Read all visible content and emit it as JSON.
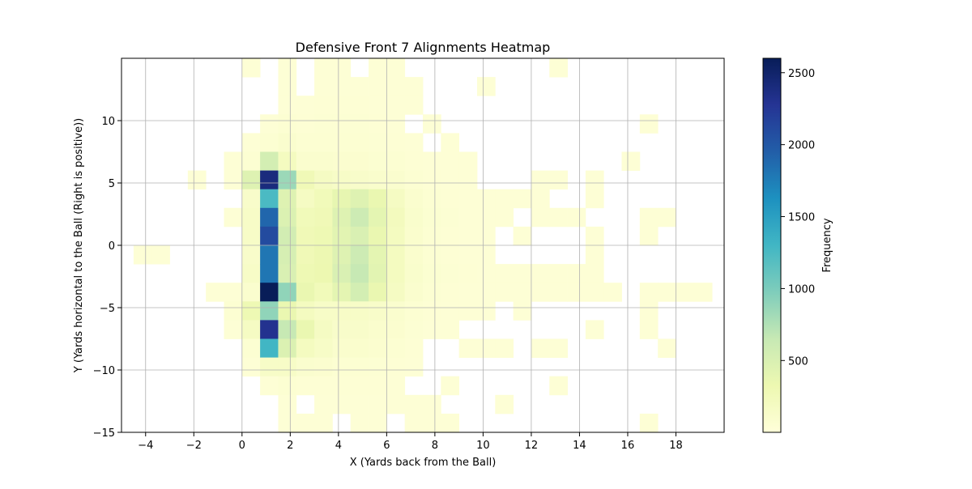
{
  "chart_data": {
    "type": "heatmap",
    "title": "Defensive Front 7 Alignments Heatmap",
    "xlabel": "X (Yards back from the Ball)",
    "ylabel": "Y (Yards horizontal to the Ball (Right is positive))",
    "colorbar_label": "Frequency",
    "colormap": "YlGnBu",
    "xlim": [
      -5,
      20
    ],
    "ylim": [
      -15,
      15
    ],
    "x_ticks": [
      "−4",
      "−2",
      "0",
      "2",
      "4",
      "6",
      "8",
      "10",
      "12",
      "14",
      "16",
      "18"
    ],
    "y_ticks": [
      "−15",
      "−10",
      "−5",
      "0",
      "5",
      "10"
    ],
    "colorbar_ticks": [
      "500",
      "1000",
      "1500",
      "2000",
      "2500"
    ],
    "colorbar_range": [
      1,
      2600
    ],
    "grid": true,
    "bin_width_x": 0.75,
    "bin_height_y": 1.5,
    "columns": [
      {
        "x": -4.125,
        "cells": [
          [
            -0.75,
            30
          ]
        ]
      },
      {
        "x": -3.375,
        "cells": [
          [
            -0.75,
            30
          ]
        ]
      },
      {
        "x": -1.875,
        "cells": [
          [
            5.25,
            30
          ]
        ]
      },
      {
        "x": -1.125,
        "cells": [
          [
            -3.75,
            30
          ]
        ]
      },
      {
        "x": -0.375,
        "cells": [
          [
            6.75,
            30
          ],
          [
            5.25,
            30
          ],
          [
            2.25,
            30
          ],
          [
            -3.75,
            30
          ],
          [
            -5.25,
            60
          ],
          [
            -6.75,
            30
          ]
        ]
      },
      {
        "x": 0.375,
        "cells": [
          [
            14.25,
            30
          ],
          [
            8.25,
            30
          ],
          [
            6.75,
            60
          ],
          [
            5.25,
            450
          ],
          [
            3.75,
            120
          ],
          [
            2.25,
            150
          ],
          [
            0.75,
            150
          ],
          [
            -0.75,
            120
          ],
          [
            -2.25,
            150
          ],
          [
            -3.75,
            90
          ],
          [
            -5.25,
            300
          ],
          [
            -6.75,
            180
          ],
          [
            -8.25,
            60
          ],
          [
            -9.75,
            30
          ]
        ]
      },
      {
        "x": 1.125,
        "cells": [
          [
            9.75,
            30
          ],
          [
            8.25,
            60
          ],
          [
            6.75,
            550
          ],
          [
            5.25,
            2400
          ],
          [
            3.75,
            1250
          ],
          [
            2.25,
            1900
          ],
          [
            0.75,
            2100
          ],
          [
            -0.75,
            1800
          ],
          [
            -2.25,
            1800
          ],
          [
            -3.75,
            2600
          ],
          [
            -5.25,
            900
          ],
          [
            -6.75,
            2300
          ],
          [
            -8.25,
            1300
          ],
          [
            -9.75,
            150
          ],
          [
            -11.25,
            30
          ]
        ]
      },
      {
        "x": 1.875,
        "cells": [
          [
            14.25,
            30
          ],
          [
            12.75,
            30
          ],
          [
            11.25,
            30
          ],
          [
            9.75,
            60
          ],
          [
            8.25,
            90
          ],
          [
            6.75,
            200
          ],
          [
            5.25,
            850
          ],
          [
            3.75,
            450
          ],
          [
            2.25,
            480
          ],
          [
            0.75,
            560
          ],
          [
            -0.75,
            520
          ],
          [
            -2.25,
            500
          ],
          [
            -3.75,
            900
          ],
          [
            -5.25,
            350
          ],
          [
            -6.75,
            650
          ],
          [
            -8.25,
            480
          ],
          [
            -9.75,
            150
          ],
          [
            -11.25,
            60
          ],
          [
            -12.75,
            30
          ],
          [
            -14.25,
            30
          ]
        ]
      },
      {
        "x": 2.625,
        "cells": [
          [
            11.25,
            30
          ],
          [
            9.75,
            40
          ],
          [
            8.25,
            60
          ],
          [
            6.75,
            90
          ],
          [
            5.25,
            280
          ],
          [
            3.75,
            180
          ],
          [
            2.25,
            250
          ],
          [
            0.75,
            280
          ],
          [
            -0.75,
            280
          ],
          [
            -2.25,
            300
          ],
          [
            -3.75,
            350
          ],
          [
            -5.25,
            200
          ],
          [
            -6.75,
            350
          ],
          [
            -8.25,
            200
          ],
          [
            -9.75,
            90
          ],
          [
            -11.25,
            40
          ],
          [
            -14.25,
            30
          ]
        ]
      },
      {
        "x": 3.375,
        "cells": [
          [
            14.25,
            30
          ],
          [
            12.75,
            30
          ],
          [
            11.25,
            40
          ],
          [
            9.75,
            50
          ],
          [
            8.25,
            60
          ],
          [
            6.75,
            90
          ],
          [
            5.25,
            180
          ],
          [
            3.75,
            250
          ],
          [
            2.25,
            280
          ],
          [
            0.75,
            300
          ],
          [
            -0.75,
            320
          ],
          [
            -2.25,
            330
          ],
          [
            -3.75,
            250
          ],
          [
            -5.25,
            150
          ],
          [
            -6.75,
            180
          ],
          [
            -8.25,
            150
          ],
          [
            -9.75,
            80
          ],
          [
            -11.25,
            40
          ],
          [
            -12.75,
            30
          ],
          [
            -14.25,
            30
          ]
        ]
      },
      {
        "x": 4.125,
        "cells": [
          [
            14.25,
            30
          ],
          [
            12.75,
            30
          ],
          [
            11.25,
            40
          ],
          [
            9.75,
            50
          ],
          [
            8.25,
            60
          ],
          [
            6.75,
            80
          ],
          [
            5.25,
            150
          ],
          [
            3.75,
            380
          ],
          [
            2.25,
            450
          ],
          [
            0.75,
            420
          ],
          [
            -0.75,
            450
          ],
          [
            -2.25,
            500
          ],
          [
            -3.75,
            400
          ],
          [
            -5.25,
            150
          ],
          [
            -6.75,
            120
          ],
          [
            -8.25,
            100
          ],
          [
            -9.75,
            60
          ],
          [
            -11.25,
            40
          ],
          [
            -12.75,
            30
          ]
        ]
      },
      {
        "x": 4.875,
        "cells": [
          [
            12.75,
            30
          ],
          [
            11.25,
            40
          ],
          [
            9.75,
            50
          ],
          [
            8.25,
            60
          ],
          [
            6.75,
            80
          ],
          [
            5.25,
            120
          ],
          [
            3.75,
            450
          ],
          [
            2.25,
            600
          ],
          [
            0.75,
            500
          ],
          [
            -0.75,
            600
          ],
          [
            -2.25,
            650
          ],
          [
            -3.75,
            550
          ],
          [
            -5.25,
            150
          ],
          [
            -6.75,
            120
          ],
          [
            -8.25,
            100
          ],
          [
            -9.75,
            60
          ],
          [
            -11.25,
            40
          ],
          [
            -12.75,
            30
          ],
          [
            -14.25,
            30
          ]
        ]
      },
      {
        "x": 5.625,
        "cells": [
          [
            14.25,
            30
          ],
          [
            12.75,
            30
          ],
          [
            11.25,
            30
          ],
          [
            9.75,
            40
          ],
          [
            8.25,
            50
          ],
          [
            6.75,
            70
          ],
          [
            5.25,
            110
          ],
          [
            3.75,
            350
          ],
          [
            2.25,
            400
          ],
          [
            0.75,
            350
          ],
          [
            -0.75,
            400
          ],
          [
            -2.25,
            420
          ],
          [
            -3.75,
            350
          ],
          [
            -5.25,
            130
          ],
          [
            -6.75,
            100
          ],
          [
            -8.25,
            80
          ],
          [
            -9.75,
            50
          ],
          [
            -11.25,
            40
          ],
          [
            -12.75,
            30
          ],
          [
            -14.25,
            30
          ]
        ]
      },
      {
        "x": 6.375,
        "cells": [
          [
            14.25,
            30
          ],
          [
            12.75,
            30
          ],
          [
            11.25,
            30
          ],
          [
            9.75,
            30
          ],
          [
            8.25,
            40
          ],
          [
            6.75,
            60
          ],
          [
            5.25,
            90
          ],
          [
            3.75,
            180
          ],
          [
            2.25,
            220
          ],
          [
            0.75,
            200
          ],
          [
            -0.75,
            200
          ],
          [
            -2.25,
            200
          ],
          [
            -3.75,
            180
          ],
          [
            -5.25,
            90
          ],
          [
            -6.75,
            80
          ],
          [
            -8.25,
            60
          ],
          [
            -9.75,
            40
          ],
          [
            -11.25,
            30
          ],
          [
            -12.75,
            30
          ]
        ]
      },
      {
        "x": 7.125,
        "cells": [
          [
            12.75,
            30
          ],
          [
            11.25,
            30
          ],
          [
            8.25,
            30
          ],
          [
            6.75,
            40
          ],
          [
            5.25,
            60
          ],
          [
            3.75,
            90
          ],
          [
            2.25,
            110
          ],
          [
            0.75,
            100
          ],
          [
            -0.75,
            100
          ],
          [
            -2.25,
            110
          ],
          [
            -3.75,
            90
          ],
          [
            -5.25,
            60
          ],
          [
            -6.75,
            50
          ],
          [
            -8.25,
            40
          ],
          [
            -9.75,
            30
          ],
          [
            -12.75,
            30
          ],
          [
            -14.25,
            30
          ]
        ]
      },
      {
        "x": 7.875,
        "cells": [
          [
            9.75,
            30
          ],
          [
            6.75,
            30
          ],
          [
            5.25,
            40
          ],
          [
            3.75,
            60
          ],
          [
            2.25,
            70
          ],
          [
            0.75,
            60
          ],
          [
            -0.75,
            60
          ],
          [
            -2.25,
            70
          ],
          [
            -3.75,
            60
          ],
          [
            -5.25,
            40
          ],
          [
            -6.75,
            30
          ],
          [
            -12.75,
            30
          ],
          [
            -14.25,
            30
          ]
        ]
      },
      {
        "x": 8.625,
        "cells": [
          [
            8.25,
            30
          ],
          [
            6.75,
            30
          ],
          [
            5.25,
            30
          ],
          [
            3.75,
            40
          ],
          [
            2.25,
            50
          ],
          [
            0.75,
            40
          ],
          [
            -0.75,
            40
          ],
          [
            -2.25,
            50
          ],
          [
            -3.75,
            40
          ],
          [
            -5.25,
            30
          ],
          [
            -6.75,
            30
          ],
          [
            -11.25,
            30
          ],
          [
            -14.25,
            30
          ]
        ]
      },
      {
        "x": 9.375,
        "cells": [
          [
            6.75,
            30
          ],
          [
            5.25,
            30
          ],
          [
            3.75,
            30
          ],
          [
            2.25,
            30
          ],
          [
            0.75,
            30
          ],
          [
            -0.75,
            30
          ],
          [
            -2.25,
            40
          ],
          [
            -3.75,
            30
          ],
          [
            -5.25,
            30
          ],
          [
            -8.25,
            30
          ]
        ]
      },
      {
        "x": 10.125,
        "cells": [
          [
            12.75,
            30
          ],
          [
            3.75,
            30
          ],
          [
            2.25,
            30
          ],
          [
            0.75,
            30
          ],
          [
            -0.75,
            30
          ],
          [
            -2.25,
            30
          ],
          [
            -3.75,
            30
          ],
          [
            -5.25,
            30
          ],
          [
            -8.25,
            30
          ]
        ]
      },
      {
        "x": 10.875,
        "cells": [
          [
            3.75,
            30
          ],
          [
            2.25,
            30
          ],
          [
            -2.25,
            30
          ],
          [
            -3.75,
            30
          ],
          [
            -8.25,
            30
          ],
          [
            -12.75,
            30
          ]
        ]
      },
      {
        "x": 11.625,
        "cells": [
          [
            3.75,
            30
          ],
          [
            0.75,
            30
          ],
          [
            -2.25,
            30
          ],
          [
            -3.75,
            30
          ],
          [
            -5.25,
            30
          ]
        ]
      },
      {
        "x": 12.375,
        "cells": [
          [
            5.25,
            30
          ],
          [
            3.75,
            30
          ],
          [
            2.25,
            30
          ],
          [
            -2.25,
            30
          ],
          [
            -3.75,
            30
          ],
          [
            -8.25,
            30
          ]
        ]
      },
      {
        "x": 13.125,
        "cells": [
          [
            14.25,
            30
          ],
          [
            5.25,
            30
          ],
          [
            2.25,
            30
          ],
          [
            -2.25,
            30
          ],
          [
            -3.75,
            30
          ],
          [
            -8.25,
            30
          ],
          [
            -11.25,
            30
          ]
        ]
      },
      {
        "x": 13.875,
        "cells": [
          [
            2.25,
            30
          ],
          [
            -2.25,
            30
          ],
          [
            -3.75,
            30
          ]
        ]
      },
      {
        "x": 14.625,
        "cells": [
          [
            5.25,
            30
          ],
          [
            3.75,
            30
          ],
          [
            0.75,
            30
          ],
          [
            -0.75,
            30
          ],
          [
            -2.25,
            30
          ],
          [
            -3.75,
            30
          ],
          [
            -6.75,
            30
          ]
        ]
      },
      {
        "x": 15.375,
        "cells": [
          [
            -3.75,
            30
          ]
        ]
      },
      {
        "x": 16.125,
        "cells": [
          [
            6.75,
            30
          ]
        ]
      },
      {
        "x": 16.875,
        "cells": [
          [
            9.75,
            30
          ],
          [
            2.25,
            30
          ],
          [
            0.75,
            30
          ],
          [
            -3.75,
            30
          ],
          [
            -5.25,
            30
          ],
          [
            -6.75,
            30
          ],
          [
            -14.25,
            30
          ]
        ]
      },
      {
        "x": 17.625,
        "cells": [
          [
            2.25,
            30
          ],
          [
            -3.75,
            30
          ],
          [
            -8.25,
            30
          ]
        ]
      },
      {
        "x": 18.375,
        "cells": [
          [
            -3.75,
            30
          ]
        ]
      },
      {
        "x": 19.125,
        "cells": [
          [
            -3.75,
            30
          ]
        ]
      }
    ]
  }
}
